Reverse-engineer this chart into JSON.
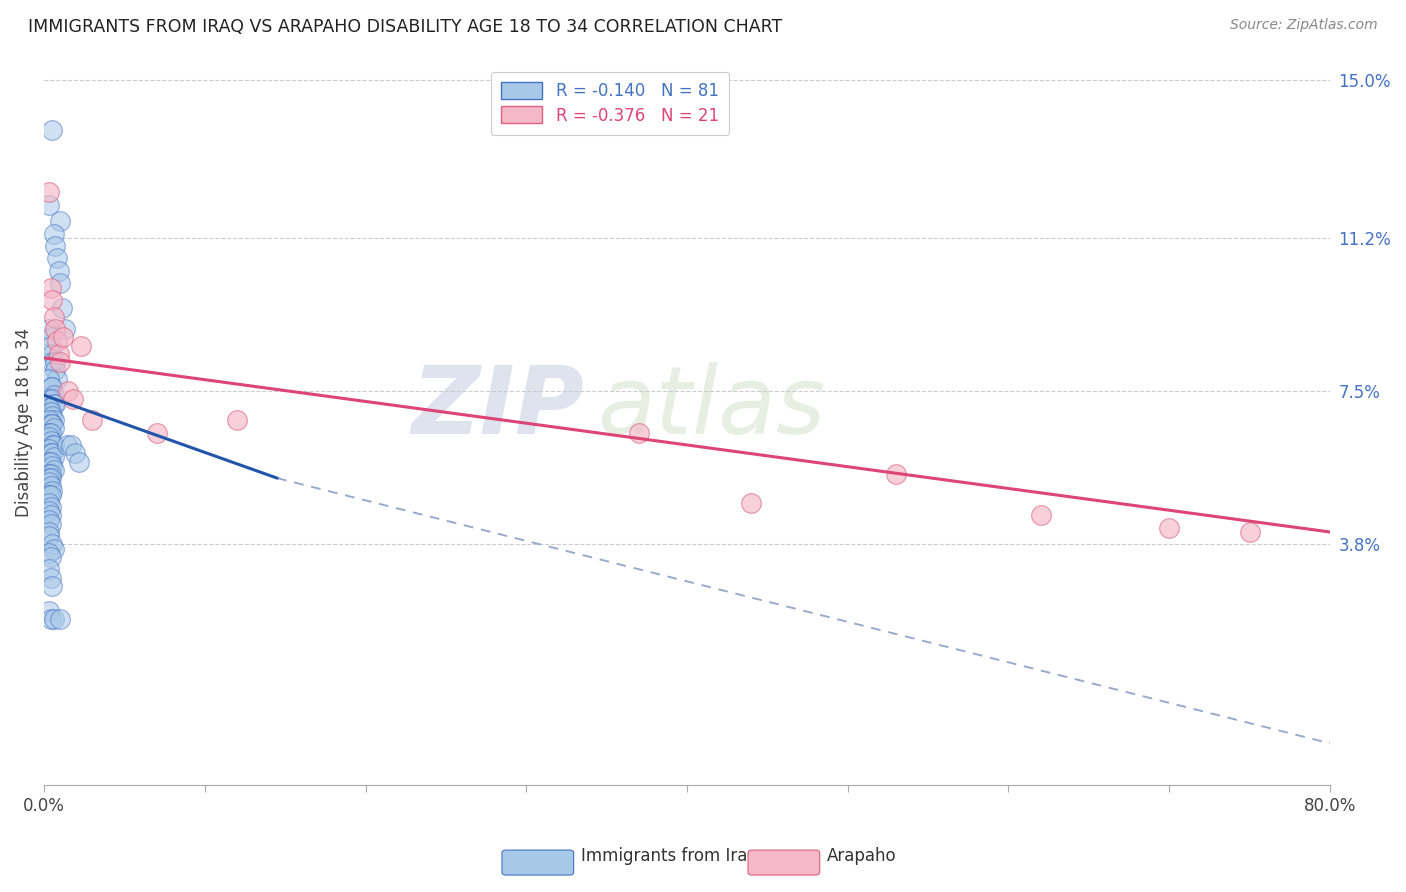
{
  "title": "IMMIGRANTS FROM IRAQ VS ARAPAHO DISABILITY AGE 18 TO 34 CORRELATION CHART",
  "source": "Source: ZipAtlas.com",
  "ylabel": "Disability Age 18 to 34",
  "x_min": 0.0,
  "x_max": 0.8,
  "y_min": -0.02,
  "y_max": 0.155,
  "y_tick_labels_right": [
    "15.0%",
    "11.2%",
    "7.5%",
    "3.8%"
  ],
  "y_tick_values_right": [
    0.15,
    0.112,
    0.075,
    0.038
  ],
  "watermark_zip": "ZIP",
  "watermark_atlas": "atlas",
  "blue_fill": "#a8c8e8",
  "blue_edge": "#4472c4",
  "pink_fill": "#f4b8c8",
  "pink_edge": "#e06080",
  "blue_line_color": "#2255aa",
  "pink_line_color": "#dd4477",
  "dashed_line_color": "#99aacc",
  "legend_label_iraq": "Immigrants from Iraq",
  "legend_label_arapaho": "Arapaho",
  "iraq_points_x": [
    0.005,
    0.003,
    0.01,
    0.006,
    0.007,
    0.008,
    0.009,
    0.01,
    0.011,
    0.013,
    0.003,
    0.004,
    0.004,
    0.005,
    0.005,
    0.007,
    0.007,
    0.008,
    0.003,
    0.004,
    0.005,
    0.006,
    0.003,
    0.005,
    0.006,
    0.007,
    0.003,
    0.004,
    0.005,
    0.006,
    0.003,
    0.004,
    0.005,
    0.006,
    0.003,
    0.004,
    0.003,
    0.004,
    0.005,
    0.006,
    0.003,
    0.004,
    0.005,
    0.006,
    0.003,
    0.004,
    0.005,
    0.006,
    0.003,
    0.004,
    0.003,
    0.004,
    0.003,
    0.004,
    0.005,
    0.003,
    0.004,
    0.003,
    0.004,
    0.003,
    0.004,
    0.003,
    0.004,
    0.003,
    0.003,
    0.005,
    0.006,
    0.014,
    0.017,
    0.019,
    0.022,
    0.003,
    0.004,
    0.003,
    0.004,
    0.005,
    0.003,
    0.004,
    0.006,
    0.01
  ],
  "iraq_points_y": [
    0.138,
    0.12,
    0.116,
    0.113,
    0.11,
    0.107,
    0.104,
    0.101,
    0.095,
    0.09,
    0.09,
    0.088,
    0.086,
    0.084,
    0.082,
    0.082,
    0.08,
    0.078,
    0.078,
    0.076,
    0.076,
    0.074,
    0.073,
    0.073,
    0.072,
    0.072,
    0.071,
    0.07,
    0.069,
    0.068,
    0.068,
    0.067,
    0.067,
    0.066,
    0.065,
    0.065,
    0.064,
    0.063,
    0.062,
    0.062,
    0.061,
    0.06,
    0.06,
    0.059,
    0.058,
    0.058,
    0.057,
    0.056,
    0.055,
    0.055,
    0.054,
    0.054,
    0.053,
    0.052,
    0.051,
    0.05,
    0.05,
    0.048,
    0.047,
    0.046,
    0.045,
    0.044,
    0.043,
    0.041,
    0.04,
    0.038,
    0.037,
    0.062,
    0.062,
    0.06,
    0.058,
    0.036,
    0.035,
    0.032,
    0.03,
    0.028,
    0.022,
    0.02,
    0.02,
    0.02
  ],
  "arapaho_points_x": [
    0.003,
    0.004,
    0.005,
    0.006,
    0.007,
    0.008,
    0.009,
    0.01,
    0.012,
    0.015,
    0.018,
    0.023,
    0.03,
    0.07,
    0.12,
    0.37,
    0.44,
    0.53,
    0.62,
    0.7,
    0.75
  ],
  "arapaho_points_y": [
    0.123,
    0.1,
    0.097,
    0.093,
    0.09,
    0.087,
    0.084,
    0.082,
    0.088,
    0.075,
    0.073,
    0.086,
    0.068,
    0.065,
    0.068,
    0.065,
    0.048,
    0.055,
    0.045,
    0.042,
    0.041
  ],
  "iraq_line_x0": 0.0,
  "iraq_line_x1": 0.145,
  "iraq_line_y0": 0.074,
  "iraq_line_y1": 0.054,
  "arapaho_line_x0": 0.0,
  "arapaho_line_x1": 0.8,
  "arapaho_line_y0": 0.083,
  "arapaho_line_y1": 0.041,
  "dashed_line_x0": 0.145,
  "dashed_line_x1": 0.8,
  "dashed_line_y0": 0.054,
  "dashed_line_y1": -0.01,
  "x_major_ticks": [
    0.0,
    0.1,
    0.2,
    0.3,
    0.4,
    0.5,
    0.6,
    0.7,
    0.8
  ],
  "x_label_ticks": [
    0.0,
    0.8
  ],
  "x_label_values": [
    "0.0%",
    "80.0%"
  ]
}
